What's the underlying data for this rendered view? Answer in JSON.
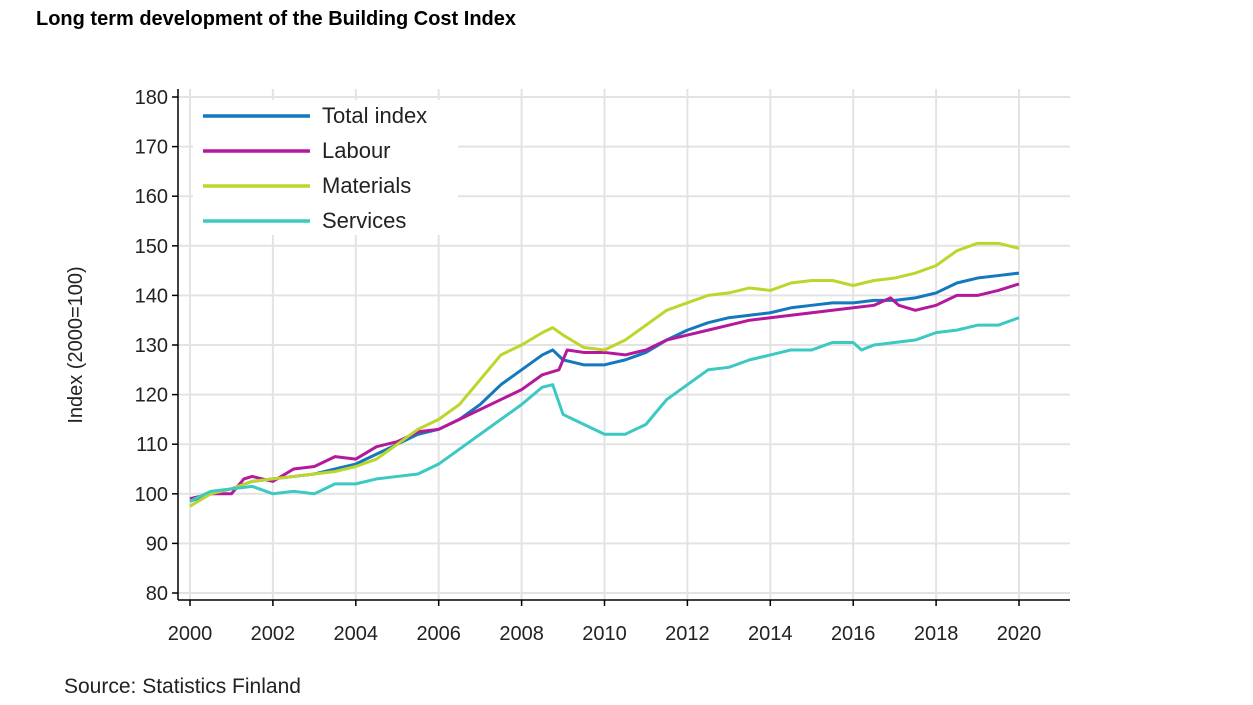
{
  "title": "Long term development of the Building Cost Index",
  "source": "Source: Statistics Finland",
  "chart_data": {
    "type": "line",
    "title": "Long term development of the Building Cost Index",
    "xlabel": "",
    "ylabel": "Index (2000=100)",
    "xlim": [
      2000,
      2020
    ],
    "ylim": [
      80,
      180
    ],
    "xticks": [
      "2000",
      "2002",
      "2004",
      "2006",
      "2008",
      "2010",
      "2012",
      "2014",
      "2016",
      "2018",
      "2020"
    ],
    "yticks": [
      "80",
      "90",
      "100",
      "110",
      "120",
      "130",
      "140",
      "150",
      "160",
      "170",
      "180"
    ],
    "grid": true,
    "legend": "top-left",
    "series": [
      {
        "name": "Total index",
        "color": "#1478be",
        "points": [
          [
            2000,
            98.5
          ],
          [
            2000.5,
            100
          ],
          [
            2001,
            101
          ],
          [
            2001.5,
            102.5
          ],
          [
            2002,
            103
          ],
          [
            2002.5,
            103.5
          ],
          [
            2003,
            104
          ],
          [
            2003.5,
            105
          ],
          [
            2004,
            106
          ],
          [
            2004.5,
            108
          ],
          [
            2005,
            110
          ],
          [
            2005.5,
            112
          ],
          [
            2006,
            113
          ],
          [
            2006.5,
            115
          ],
          [
            2007,
            118
          ],
          [
            2007.5,
            122
          ],
          [
            2008,
            125
          ],
          [
            2008.5,
            128
          ],
          [
            2008.75,
            129
          ],
          [
            2009,
            127
          ],
          [
            2009.5,
            126
          ],
          [
            2010,
            126
          ],
          [
            2010.5,
            127
          ],
          [
            2011,
            128.5
          ],
          [
            2011.5,
            131
          ],
          [
            2012,
            133
          ],
          [
            2012.5,
            134.5
          ],
          [
            2013,
            135.5
          ],
          [
            2013.5,
            136
          ],
          [
            2014,
            136.5
          ],
          [
            2014.5,
            137.5
          ],
          [
            2015,
            138
          ],
          [
            2015.5,
            138.5
          ],
          [
            2016,
            138.5
          ],
          [
            2016.5,
            139
          ],
          [
            2017,
            139
          ],
          [
            2017.5,
            139.5
          ],
          [
            2018,
            140.5
          ],
          [
            2018.5,
            142.5
          ],
          [
            2019,
            143.5
          ],
          [
            2019.5,
            144
          ],
          [
            2020,
            144.5
          ]
        ]
      },
      {
        "name": "Labour",
        "color": "#b4189b",
        "points": [
          [
            2000,
            99
          ],
          [
            2000.5,
            100
          ],
          [
            2001,
            100
          ],
          [
            2001.3,
            103
          ],
          [
            2001.5,
            103.5
          ],
          [
            2002,
            102.5
          ],
          [
            2002.5,
            105
          ],
          [
            2003,
            105.5
          ],
          [
            2003.5,
            107.5
          ],
          [
            2004,
            107
          ],
          [
            2004.5,
            109.5
          ],
          [
            2005,
            110.5
          ],
          [
            2005.5,
            112.5
          ],
          [
            2006,
            113
          ],
          [
            2006.5,
            115
          ],
          [
            2007,
            117
          ],
          [
            2007.5,
            119
          ],
          [
            2008,
            121
          ],
          [
            2008.5,
            124
          ],
          [
            2008.9,
            125
          ],
          [
            2009.1,
            129
          ],
          [
            2009.5,
            128.5
          ],
          [
            2010,
            128.5
          ],
          [
            2010.5,
            128
          ],
          [
            2011,
            129
          ],
          [
            2011.5,
            131
          ],
          [
            2012,
            132
          ],
          [
            2012.5,
            133
          ],
          [
            2013,
            134
          ],
          [
            2013.5,
            135
          ],
          [
            2014,
            135.5
          ],
          [
            2014.5,
            136
          ],
          [
            2015,
            136.5
          ],
          [
            2015.5,
            137
          ],
          [
            2016,
            137.5
          ],
          [
            2016.5,
            138
          ],
          [
            2016.9,
            139.5
          ],
          [
            2017.1,
            138
          ],
          [
            2017.5,
            137
          ],
          [
            2018,
            138
          ],
          [
            2018.5,
            140
          ],
          [
            2019,
            140
          ],
          [
            2019.5,
            141
          ],
          [
            2020,
            142.3
          ]
        ]
      },
      {
        "name": "Materials",
        "color": "#bcd62c",
        "points": [
          [
            2000,
            97.5
          ],
          [
            2000.5,
            100
          ],
          [
            2001,
            101
          ],
          [
            2001.5,
            102.5
          ],
          [
            2002,
            103
          ],
          [
            2002.5,
            103.5
          ],
          [
            2003,
            104
          ],
          [
            2003.5,
            104.5
          ],
          [
            2004,
            105.5
          ],
          [
            2004.5,
            107
          ],
          [
            2005,
            110
          ],
          [
            2005.5,
            113
          ],
          [
            2006,
            115
          ],
          [
            2006.5,
            118
          ],
          [
            2007,
            123
          ],
          [
            2007.5,
            128
          ],
          [
            2008,
            130
          ],
          [
            2008.5,
            132.5
          ],
          [
            2008.75,
            133.5
          ],
          [
            2009,
            132
          ],
          [
            2009.5,
            129.5
          ],
          [
            2010,
            129
          ],
          [
            2010.5,
            131
          ],
          [
            2011,
            134
          ],
          [
            2011.5,
            137
          ],
          [
            2012,
            138.5
          ],
          [
            2012.5,
            140
          ],
          [
            2013,
            140.5
          ],
          [
            2013.5,
            141.5
          ],
          [
            2014,
            141
          ],
          [
            2014.5,
            142.5
          ],
          [
            2015,
            143
          ],
          [
            2015.5,
            143
          ],
          [
            2016,
            142
          ],
          [
            2016.5,
            143
          ],
          [
            2017,
            143.5
          ],
          [
            2017.5,
            144.5
          ],
          [
            2018,
            146
          ],
          [
            2018.5,
            149
          ],
          [
            2019,
            150.5
          ],
          [
            2019.5,
            150.5
          ],
          [
            2020,
            149.5
          ]
        ]
      },
      {
        "name": "Services",
        "color": "#3cc8c3",
        "points": [
          [
            2000,
            98.5
          ],
          [
            2000.5,
            100.5
          ],
          [
            2001,
            101
          ],
          [
            2001.5,
            101.5
          ],
          [
            2002,
            100
          ],
          [
            2002.5,
            100.5
          ],
          [
            2003,
            100
          ],
          [
            2003.5,
            102
          ],
          [
            2004,
            102
          ],
          [
            2004.5,
            103
          ],
          [
            2005,
            103.5
          ],
          [
            2005.5,
            104
          ],
          [
            2006,
            106
          ],
          [
            2006.5,
            109
          ],
          [
            2007,
            112
          ],
          [
            2007.5,
            115
          ],
          [
            2008,
            118
          ],
          [
            2008.5,
            121.5
          ],
          [
            2008.75,
            122
          ],
          [
            2009,
            116
          ],
          [
            2009.5,
            114
          ],
          [
            2010,
            112
          ],
          [
            2010.5,
            112
          ],
          [
            2011,
            114
          ],
          [
            2011.5,
            119
          ],
          [
            2012,
            122
          ],
          [
            2012.5,
            125
          ],
          [
            2013,
            125.5
          ],
          [
            2013.5,
            127
          ],
          [
            2014,
            128
          ],
          [
            2014.5,
            129
          ],
          [
            2015,
            129
          ],
          [
            2015.5,
            130.5
          ],
          [
            2016,
            130.5
          ],
          [
            2016.2,
            129
          ],
          [
            2016.5,
            130
          ],
          [
            2017,
            130.5
          ],
          [
            2017.5,
            131
          ],
          [
            2018,
            132.5
          ],
          [
            2018.5,
            133
          ],
          [
            2019,
            134
          ],
          [
            2019.5,
            134
          ],
          [
            2020,
            135.5
          ]
        ]
      }
    ]
  }
}
